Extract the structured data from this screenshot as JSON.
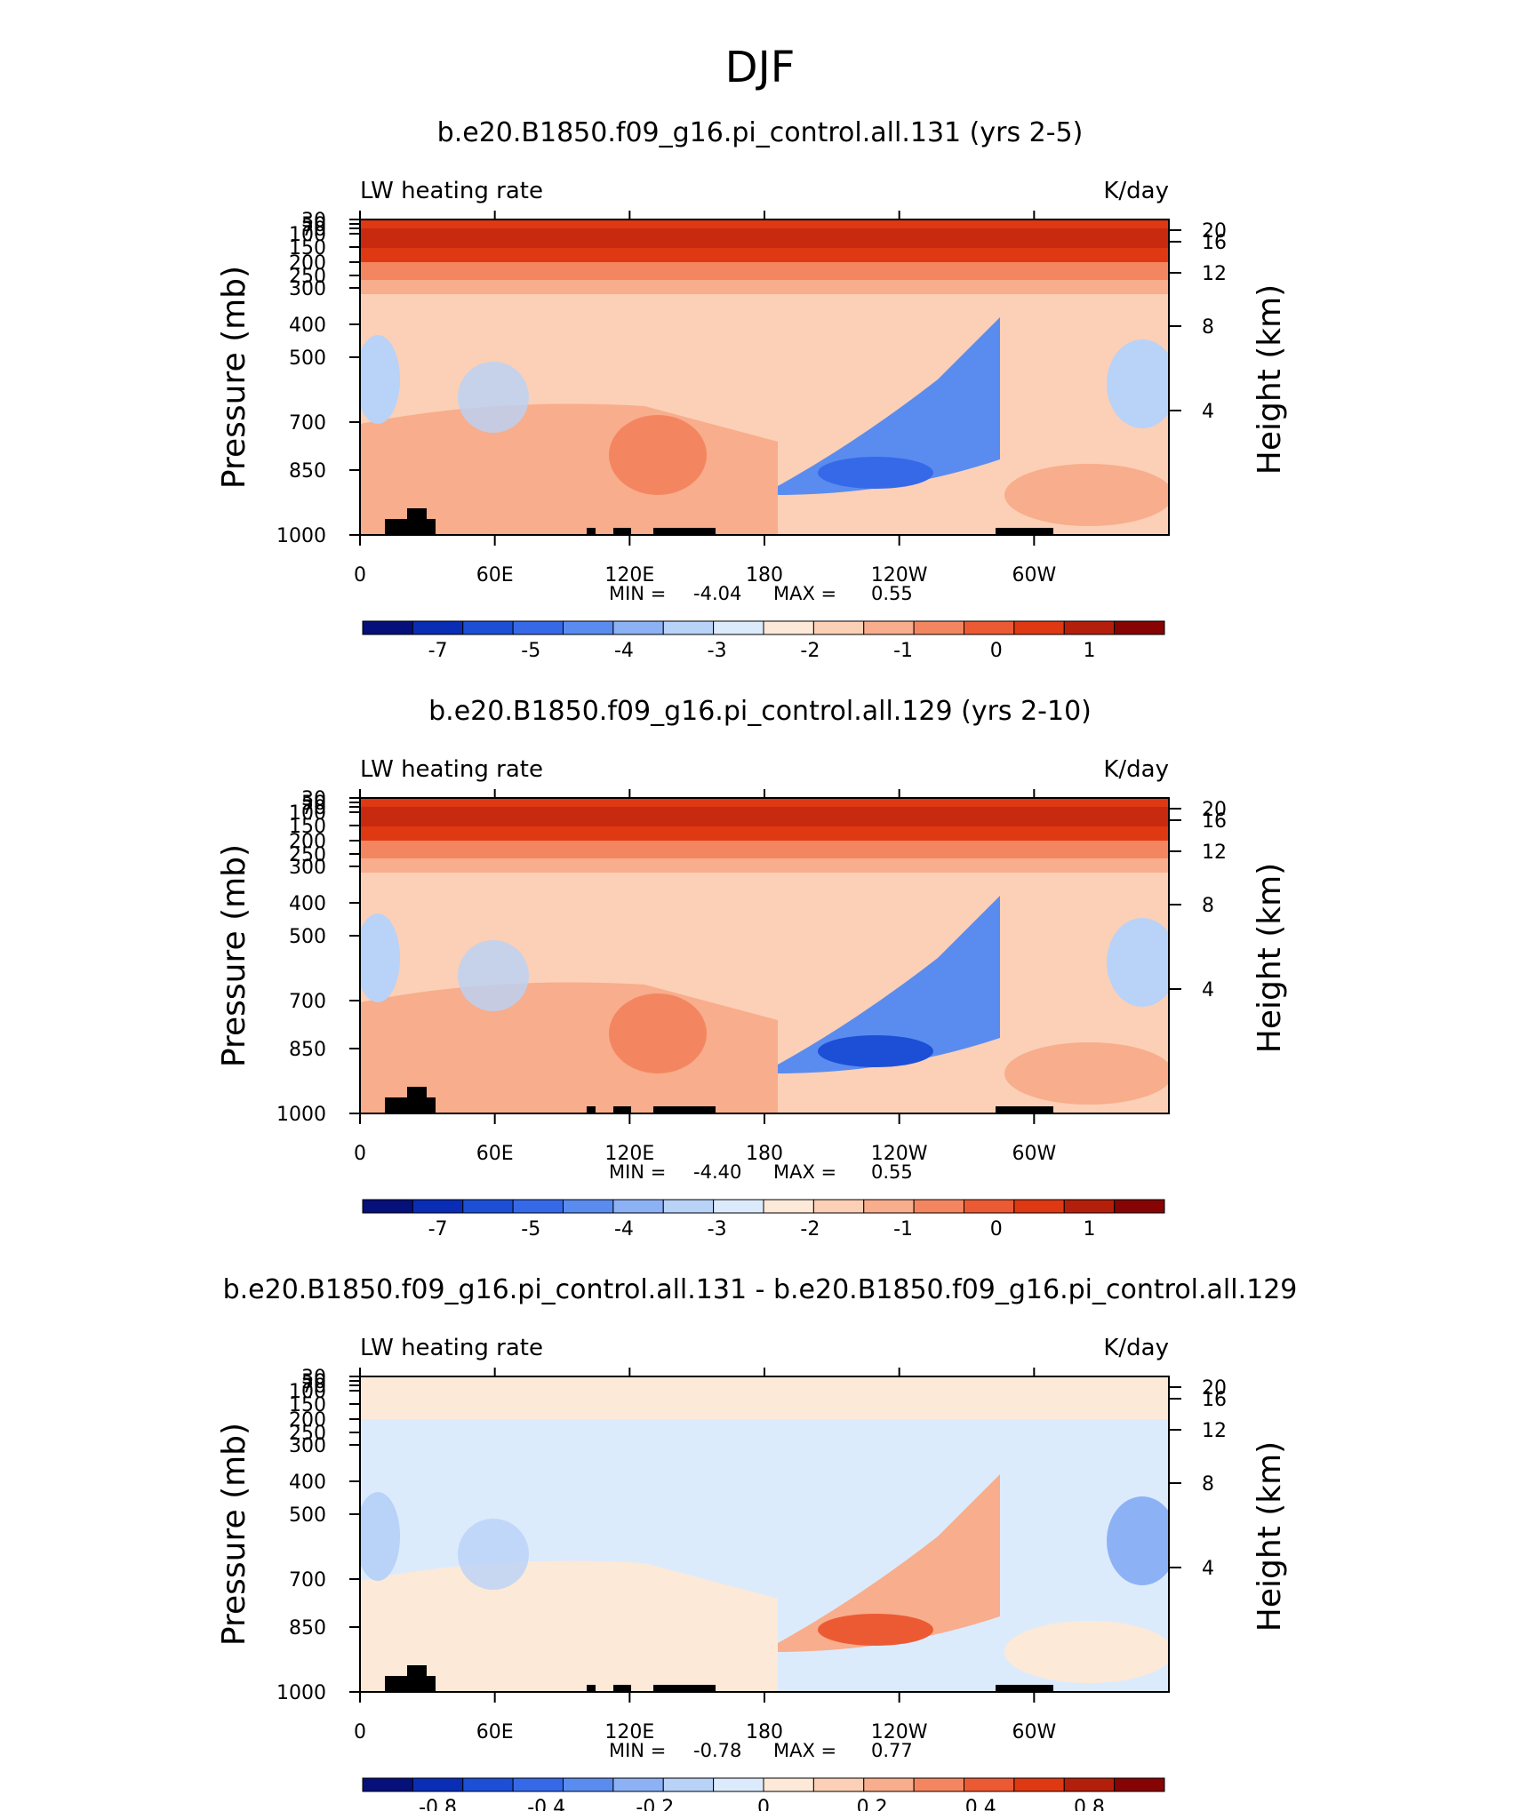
{
  "figure": {
    "title": "DJF"
  },
  "chart_data": [
    {
      "type": "heatmap",
      "title": "b.e20.B1850.f09_g16.pi_control.all.131 (yrs 2-5)",
      "subtitle_left": "LW heating rate",
      "subtitle_right": "K/day",
      "xlabel": "",
      "ylabel": "Pressure (mb)",
      "ylabel_right": "Height (km)",
      "x_ticks": [
        "0",
        "60E",
        "120E",
        "180",
        "120W",
        "60W"
      ],
      "y_ticks": [
        "30",
        "50",
        "70",
        "100",
        "150",
        "200",
        "250",
        "300",
        "400",
        "500",
        "700",
        "850",
        "1000"
      ],
      "y_right_ticks": [
        "20",
        "16",
        "12",
        "8",
        "4"
      ],
      "min_label": "MIN =",
      "min_value": "-4.04",
      "max_label": "MAX =",
      "max_value": "0.55",
      "colorbar_labels": [
        "-7",
        "-5",
        "-4",
        "-3",
        "-2",
        "-1",
        "0",
        "1"
      ],
      "colorbar_colors": [
        "#05107a",
        "#0a2db5",
        "#1c4fd6",
        "#3669e8",
        "#5a8cf0",
        "#8cb1f5",
        "#b9d2f8",
        "#dcebfc",
        "#fde9d7",
        "#fbd0b6",
        "#f8ad8c",
        "#f38660",
        "#ec5a34",
        "#de3913",
        "#b41f0c",
        "#860404"
      ],
      "stratosphere_color": "#de3913",
      "fields": {
        "mid": "#fbd0b6",
        "warm_left": "#f8ad8c",
        "warm_center": "#f38660",
        "cool_left": "#b9d2f8",
        "cold_center": "#5a8cf0",
        "cold_core": "#3669e8",
        "cool_right": "#b9d2f8"
      }
    },
    {
      "type": "heatmap",
      "title": "b.e20.B1850.f09_g16.pi_control.all.129 (yrs 2-10)",
      "subtitle_left": "LW heating rate",
      "subtitle_right": "K/day",
      "xlabel": "",
      "ylabel": "Pressure (mb)",
      "ylabel_right": "Height (km)",
      "x_ticks": [
        "0",
        "60E",
        "120E",
        "180",
        "120W",
        "60W"
      ],
      "y_ticks": [
        "30",
        "50",
        "70",
        "100",
        "150",
        "200",
        "250",
        "300",
        "400",
        "500",
        "700",
        "850",
        "1000"
      ],
      "y_right_ticks": [
        "20",
        "16",
        "12",
        "8",
        "4"
      ],
      "min_label": "MIN =",
      "min_value": "-4.40",
      "max_label": "MAX =",
      "max_value": "0.55",
      "colorbar_labels": [
        "-7",
        "-5",
        "-4",
        "-3",
        "-2",
        "-1",
        "0",
        "1"
      ],
      "colorbar_colors": [
        "#05107a",
        "#0a2db5",
        "#1c4fd6",
        "#3669e8",
        "#5a8cf0",
        "#8cb1f5",
        "#b9d2f8",
        "#dcebfc",
        "#fde9d7",
        "#fbd0b6",
        "#f8ad8c",
        "#f38660",
        "#ec5a34",
        "#de3913",
        "#b41f0c",
        "#860404"
      ],
      "stratosphere_color": "#de3913",
      "fields": {
        "mid": "#fbd0b6",
        "warm_left": "#f8ad8c",
        "warm_center": "#f38660",
        "cool_left": "#b9d2f8",
        "cold_center": "#5a8cf0",
        "cold_core": "#1c4fd6",
        "cool_right": "#b9d2f8"
      }
    },
    {
      "type": "heatmap",
      "title": "b.e20.B1850.f09_g16.pi_control.all.131 - b.e20.B1850.f09_g16.pi_control.all.129",
      "subtitle_left": "LW heating rate",
      "subtitle_right": "K/day",
      "xlabel": "",
      "ylabel": "Pressure (mb)",
      "ylabel_right": "Height (km)",
      "x_ticks": [
        "0",
        "60E",
        "120E",
        "180",
        "120W",
        "60W"
      ],
      "y_ticks": [
        "30",
        "50",
        "70",
        "100",
        "150",
        "200",
        "250",
        "300",
        "400",
        "500",
        "700",
        "850",
        "1000"
      ],
      "y_right_ticks": [
        "20",
        "16",
        "12",
        "8",
        "4"
      ],
      "min_label": "MIN =",
      "min_value": "-0.78",
      "max_label": "MAX =",
      "max_value": "0.77",
      "colorbar_labels": [
        "-0.8",
        "-0.4",
        "-0.2",
        "0",
        "0.2",
        "0.4",
        "0.8"
      ],
      "colorbar_colors": [
        "#05107a",
        "#0a2db5",
        "#1c4fd6",
        "#3669e8",
        "#5a8cf0",
        "#8cb1f5",
        "#b9d2f8",
        "#dcebfc",
        "#fde9d7",
        "#fbd0b6",
        "#f8ad8c",
        "#f38660",
        "#ec5a34",
        "#de3913",
        "#b41f0c",
        "#860404"
      ],
      "stratosphere_color": "#fde9d7",
      "fields": {
        "mid": "#dcebfc",
        "warm_left": "#fde9d7",
        "warm_center": "#fde9d7",
        "cool_left": "#b9d2f8",
        "cold_center": "#f8ad8c",
        "cold_core": "#ec5a34",
        "cool_right": "#8cb1f5"
      }
    }
  ]
}
